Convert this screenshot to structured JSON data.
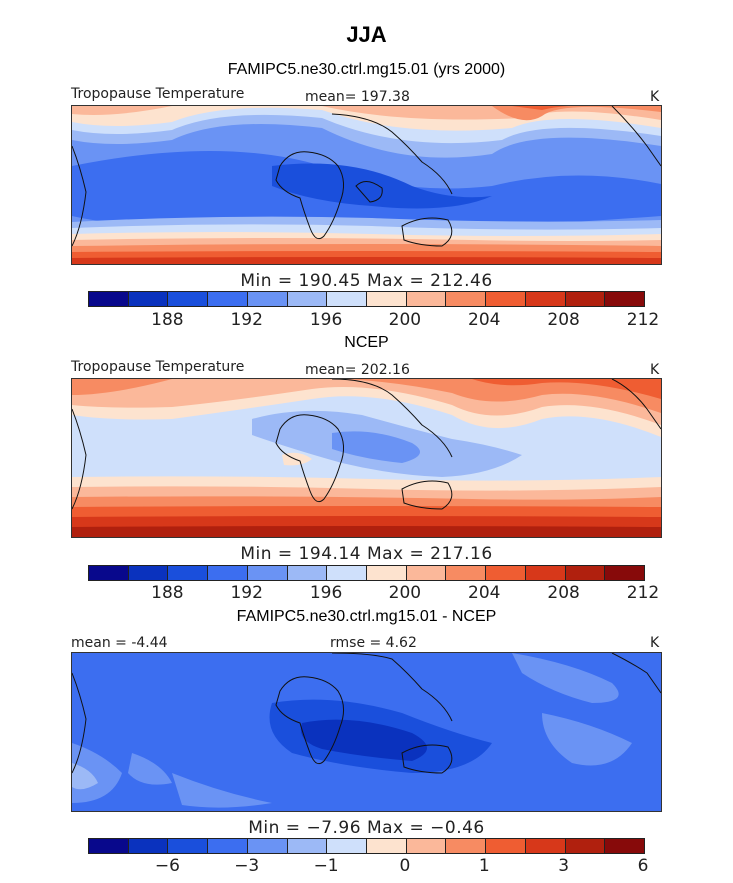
{
  "title": "JJA",
  "units": "K",
  "panels": [
    {
      "heading": "FAMIPC5.ne30.ctrl.mg15.01 (yrs 2000)",
      "left_label": "Tropopause Temperature",
      "center_label": "mean= 197.38",
      "right_label": "K",
      "minmax": "Min = 190.45 Max = 212.46",
      "ticks": [
        "188",
        "192",
        "196",
        "200",
        "204",
        "208",
        "212"
      ]
    },
    {
      "heading": "NCEP",
      "left_label": "Tropopause Temperature",
      "center_label": "mean= 202.16",
      "right_label": "K",
      "minmax": "Min = 194.14 Max = 217.16",
      "ticks": [
        "188",
        "192",
        "196",
        "200",
        "204",
        "208",
        "212"
      ]
    },
    {
      "heading": "FAMIPC5.ne30.ctrl.mg15.01 - NCEP",
      "left_label": "mean = -4.44",
      "center_label": "rmse = 4.62",
      "right_label": "K",
      "minmax": "Min = −7.96 Max = −0.46",
      "ticks": [
        "−6",
        "−3",
        "−1",
        "0",
        "1",
        "3",
        "6"
      ]
    }
  ],
  "colorbar_colors": [
    "#08088c",
    "#0a32be",
    "#1a4fdc",
    "#3c6ef0",
    "#6a93f4",
    "#9cb9f6",
    "#cfe0fb",
    "#fde3cf",
    "#fbb89a",
    "#f78b62",
    "#ef5d32",
    "#d7381a",
    "#b0200e",
    "#870a0a"
  ]
}
